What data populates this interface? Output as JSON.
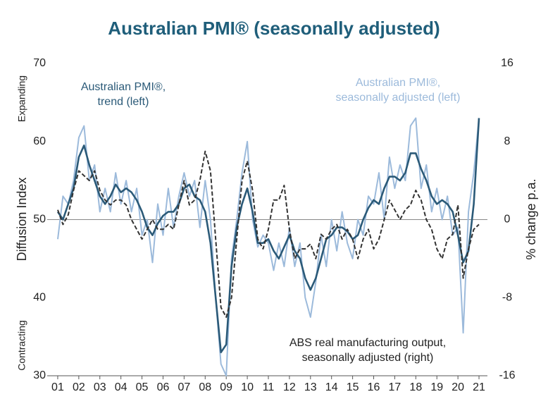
{
  "chart_data": {
    "type": "line",
    "title": "Australian PMI® (seasonally adjusted)",
    "ylabel": "Diffusion Index",
    "y2label": "% change p.a.",
    "top_label": "Expanding",
    "bottom_label": "Contracting",
    "xlim": [
      0.5,
      21.4
    ],
    "ylim": [
      30,
      70
    ],
    "y2lim": [
      -16,
      16
    ],
    "xticks": [
      {
        "value": 1,
        "label": "01"
      },
      {
        "value": 2,
        "label": "02"
      },
      {
        "value": 3,
        "label": "03"
      },
      {
        "value": 4,
        "label": "04"
      },
      {
        "value": 5,
        "label": "05"
      },
      {
        "value": 6,
        "label": "06"
      },
      {
        "value": 7,
        "label": "07"
      },
      {
        "value": 8,
        "label": "08"
      },
      {
        "value": 9,
        "label": "09"
      },
      10,
      11,
      12,
      13,
      14,
      15,
      16,
      17,
      18,
      19,
      20,
      21
    ],
    "yticks": [
      30,
      40,
      50,
      60,
      70
    ],
    "y2ticks": [
      -16,
      -8,
      0,
      8,
      16
    ],
    "reference_line": 50,
    "x": [
      1,
      1.25,
      1.5,
      1.75,
      2,
      2.25,
      2.5,
      2.75,
      3,
      3.25,
      3.5,
      3.75,
      4,
      4.25,
      4.5,
      4.75,
      5,
      5.25,
      5.5,
      5.75,
      6,
      6.25,
      6.5,
      6.75,
      7,
      7.25,
      7.5,
      7.75,
      8,
      8.25,
      8.5,
      8.75,
      9,
      9.25,
      9.5,
      9.75,
      10,
      10.25,
      10.5,
      10.75,
      11,
      11.25,
      11.5,
      11.75,
      12,
      12.25,
      12.5,
      12.75,
      13,
      13.25,
      13.5,
      13.75,
      14,
      14.25,
      14.5,
      14.75,
      15,
      15.25,
      15.5,
      15.75,
      16,
      16.25,
      16.5,
      16.75,
      17,
      17.25,
      17.5,
      17.75,
      18,
      18.25,
      18.5,
      18.75,
      19,
      19.25,
      19.5,
      19.75,
      20,
      20.25,
      20.5,
      20.75,
      21
    ],
    "series": [
      {
        "label": [
          "Australian PMI®,",
          "seasonally adjusted (left)"
        ],
        "color": "#9cbadb",
        "style": "solid",
        "axis": "y",
        "values": [
          47.5,
          53,
          52,
          55,
          60.5,
          62,
          55,
          57,
          51,
          54,
          51,
          56,
          52,
          55,
          51,
          54,
          48,
          50,
          44.5,
          52,
          48,
          54,
          49,
          53,
          56,
          53,
          55,
          49,
          55,
          50,
          40,
          31.5,
          30,
          45,
          50,
          56,
          60,
          50,
          46.5,
          48,
          47,
          43.5,
          47,
          44,
          49,
          44,
          47,
          40,
          37.5,
          42,
          48,
          44,
          50,
          46,
          51,
          47,
          45,
          50,
          48,
          53,
          52,
          56,
          50,
          58,
          54,
          57,
          55,
          62,
          63,
          54,
          57,
          51,
          54,
          50,
          53,
          48,
          49,
          35.5,
          51,
          56,
          63
        ]
      },
      {
        "label": [
          "Australian PMI®,",
          "trend (left)"
        ],
        "color": "#2b5a78",
        "style": "solid",
        "axis": "y",
        "values": [
          51,
          50,
          52,
          54,
          58,
          59.5,
          57,
          55,
          53,
          52,
          53,
          54.5,
          53.5,
          54,
          53.5,
          52.5,
          51,
          49,
          48,
          49.5,
          50.5,
          51,
          51,
          52,
          54,
          54.5,
          53,
          52.5,
          51,
          47,
          40,
          33,
          34,
          44,
          49,
          52,
          54,
          51,
          47,
          47,
          47.5,
          46,
          45,
          46.5,
          48,
          46,
          45,
          42.5,
          41,
          42.5,
          45,
          47.5,
          48,
          49,
          49,
          48.5,
          47.5,
          48,
          50,
          51.5,
          52.5,
          52,
          54,
          55.5,
          55.5,
          55,
          56,
          58.5,
          58.5,
          56.5,
          55,
          53,
          52,
          52.5,
          52,
          51,
          48,
          44.5,
          46,
          52,
          63
        ]
      },
      {
        "label": [
          "ABS real manufacturing output,",
          "seasonally adjusted (right)"
        ],
        "color": "#333333",
        "style": "dashed",
        "axis": "y2",
        "values": [
          1,
          -0.5,
          0.5,
          3,
          5,
          4.5,
          4,
          5,
          3,
          2,
          1.5,
          2,
          2,
          1.5,
          0,
          -1,
          -2,
          -1,
          0,
          -1,
          -1,
          -0.5,
          -1,
          1.5,
          4,
          1.5,
          2,
          4,
          7,
          5,
          -2,
          -9,
          -10,
          -8,
          -2,
          4,
          6,
          3,
          -2,
          -3,
          -1,
          2,
          2,
          3.5,
          -1,
          -4,
          -3,
          -3,
          -2.5,
          -4,
          -1.5,
          -2,
          -1,
          -0.5,
          -2,
          -1,
          -2,
          -4,
          -2,
          -1,
          -3,
          -2,
          0,
          2,
          1,
          0,
          1,
          1.5,
          3,
          2,
          0,
          -1,
          -3,
          -4,
          -2,
          -1.5,
          1.5,
          -6,
          -3,
          -1,
          -0.5
        ]
      }
    ]
  }
}
